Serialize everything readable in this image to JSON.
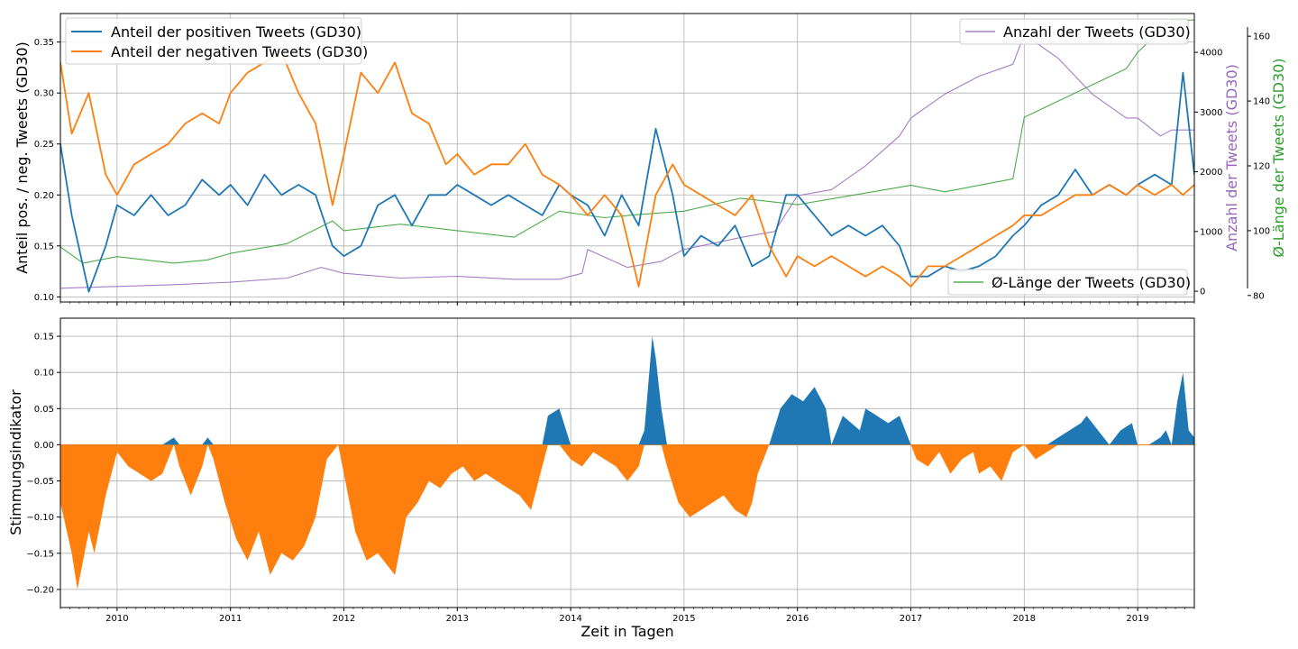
{
  "chart_data": [
    {
      "type": "line",
      "xlabel": "",
      "ylabel": "Anteil pos. / neg. Tweets (GD30)",
      "ylabel_right_1": "Anzahl der Tweets (GD30)",
      "ylabel_right_2": "Ø-Länge der Tweets (GD30)",
      "x_ticks": [
        "2010",
        "2011",
        "2012",
        "2013",
        "2014",
        "2015",
        "2016",
        "2017",
        "2018",
        "2019"
      ],
      "xlim": [
        2009.5,
        2019.5
      ],
      "ylim": [
        0.095,
        0.378
      ],
      "yticks": [
        "0.10",
        "0.15",
        "0.20",
        "0.25",
        "0.30",
        "0.35"
      ],
      "y2lim": [
        -180,
        4650
      ],
      "y2ticks": [
        "0",
        "1000",
        "2000",
        "3000",
        "4000"
      ],
      "y3lim": [
        78,
        167
      ],
      "y3ticks": [
        "80",
        "100",
        "120",
        "140",
        "160"
      ],
      "grid": true,
      "legend_left_placement": "top-left",
      "legend_count_placement": "top-right",
      "legend_length_placement": "bottom-right",
      "colors": {
        "pos": "#1f77b4",
        "neg": "#ff7f0e",
        "count": "#9467bd",
        "length": "#2ca02c"
      },
      "series": [
        {
          "name": "Anteil der positiven Tweets (GD30)",
          "axis": "left",
          "color": "#1f77b4",
          "x": [
            2009.5,
            2009.6,
            2009.75,
            2009.9,
            2010.0,
            2010.15,
            2010.3,
            2010.45,
            2010.6,
            2010.75,
            2010.9,
            2011.0,
            2011.15,
            2011.3,
            2011.45,
            2011.6,
            2011.75,
            2011.9,
            2012.0,
            2012.15,
            2012.3,
            2012.45,
            2012.6,
            2012.75,
            2012.9,
            2013.0,
            2013.15,
            2013.3,
            2013.45,
            2013.6,
            2013.75,
            2013.9,
            2014.0,
            2014.15,
            2014.3,
            2014.45,
            2014.6,
            2014.75,
            2014.9,
            2015.0,
            2015.15,
            2015.3,
            2015.45,
            2015.6,
            2015.75,
            2015.9,
            2016.0,
            2016.15,
            2016.3,
            2016.45,
            2016.6,
            2016.75,
            2016.9,
            2017.0,
            2017.15,
            2017.3,
            2017.45,
            2017.6,
            2017.75,
            2017.9,
            2018.0,
            2018.15,
            2018.3,
            2018.45,
            2018.6,
            2018.75,
            2018.9,
            2019.0,
            2019.15,
            2019.3,
            2019.4,
            2019.5
          ],
          "values": [
            0.25,
            0.18,
            0.105,
            0.15,
            0.19,
            0.18,
            0.2,
            0.18,
            0.19,
            0.215,
            0.2,
            0.21,
            0.19,
            0.22,
            0.2,
            0.21,
            0.2,
            0.15,
            0.14,
            0.15,
            0.19,
            0.2,
            0.17,
            0.2,
            0.2,
            0.21,
            0.2,
            0.19,
            0.2,
            0.19,
            0.18,
            0.21,
            0.2,
            0.19,
            0.16,
            0.2,
            0.17,
            0.265,
            0.2,
            0.14,
            0.16,
            0.15,
            0.17,
            0.13,
            0.14,
            0.2,
            0.2,
            0.18,
            0.16,
            0.17,
            0.16,
            0.17,
            0.15,
            0.12,
            0.12,
            0.13,
            0.125,
            0.13,
            0.14,
            0.16,
            0.17,
            0.19,
            0.2,
            0.225,
            0.2,
            0.21,
            0.2,
            0.21,
            0.22,
            0.21,
            0.32,
            0.22
          ]
        },
        {
          "name": "Anteil der negativen Tweets (GD30)",
          "axis": "left",
          "color": "#ff7f0e",
          "x": [
            2009.5,
            2009.6,
            2009.75,
            2009.9,
            2010.0,
            2010.15,
            2010.3,
            2010.45,
            2010.6,
            2010.75,
            2010.9,
            2011.0,
            2011.15,
            2011.3,
            2011.45,
            2011.6,
            2011.75,
            2011.9,
            2012.0,
            2012.15,
            2012.3,
            2012.45,
            2012.6,
            2012.75,
            2012.9,
            2013.0,
            2013.15,
            2013.3,
            2013.45,
            2013.6,
            2013.75,
            2013.9,
            2014.0,
            2014.15,
            2014.3,
            2014.45,
            2014.6,
            2014.75,
            2014.9,
            2015.0,
            2015.15,
            2015.3,
            2015.45,
            2015.6,
            2015.75,
            2015.9,
            2016.0,
            2016.15,
            2016.3,
            2016.45,
            2016.6,
            2016.75,
            2016.9,
            2017.0,
            2017.15,
            2017.3,
            2017.45,
            2017.6,
            2017.75,
            2017.9,
            2018.0,
            2018.15,
            2018.3,
            2018.45,
            2018.6,
            2018.75,
            2018.9,
            2019.0,
            2019.15,
            2019.3,
            2019.4,
            2019.5
          ],
          "values": [
            0.33,
            0.26,
            0.3,
            0.22,
            0.2,
            0.23,
            0.24,
            0.25,
            0.27,
            0.28,
            0.27,
            0.3,
            0.32,
            0.33,
            0.34,
            0.3,
            0.27,
            0.19,
            0.24,
            0.32,
            0.3,
            0.33,
            0.28,
            0.27,
            0.23,
            0.24,
            0.22,
            0.23,
            0.23,
            0.25,
            0.22,
            0.21,
            0.2,
            0.18,
            0.2,
            0.18,
            0.11,
            0.2,
            0.23,
            0.21,
            0.2,
            0.19,
            0.18,
            0.2,
            0.15,
            0.12,
            0.14,
            0.13,
            0.14,
            0.13,
            0.12,
            0.13,
            0.12,
            0.11,
            0.13,
            0.13,
            0.14,
            0.15,
            0.16,
            0.17,
            0.18,
            0.18,
            0.19,
            0.2,
            0.2,
            0.21,
            0.2,
            0.21,
            0.2,
            0.21,
            0.2,
            0.21
          ]
        },
        {
          "name": "Anzahl der Tweets (GD30)",
          "axis": "right-1",
          "color": "#9467bd",
          "x": [
            2009.5,
            2010.0,
            2010.5,
            2011.0,
            2011.5,
            2011.8,
            2012.0,
            2012.5,
            2013.0,
            2013.5,
            2013.9,
            2014.1,
            2014.15,
            2014.5,
            2014.8,
            2015.0,
            2015.5,
            2015.8,
            2016.0,
            2016.3,
            2016.6,
            2016.9,
            2017.0,
            2017.3,
            2017.6,
            2017.9,
            2018.0,
            2018.3,
            2018.6,
            2018.9,
            2019.0,
            2019.2,
            2019.3,
            2019.5
          ],
          "values": [
            50,
            80,
            110,
            150,
            220,
            400,
            300,
            220,
            250,
            200,
            200,
            300,
            700,
            400,
            500,
            700,
            900,
            1000,
            1600,
            1700,
            2100,
            2600,
            2900,
            3300,
            3600,
            3800,
            4300,
            3900,
            3300,
            2900,
            2900,
            2600,
            2700,
            2700
          ]
        },
        {
          "name": "Ø-Länge der Tweets (GD30)",
          "axis": "right-2",
          "color": "#2ca02c",
          "x": [
            2009.5,
            2009.7,
            2010.0,
            2010.5,
            2010.8,
            2011.0,
            2011.5,
            2011.9,
            2012.0,
            2012.5,
            2013.0,
            2013.5,
            2013.9,
            2014.3,
            2014.6,
            2015.0,
            2015.5,
            2016.0,
            2016.5,
            2017.0,
            2017.3,
            2017.6,
            2017.9,
            2018.0,
            2018.3,
            2018.6,
            2018.9,
            2019.0,
            2019.3,
            2019.5
          ],
          "values": [
            95,
            90,
            92,
            90,
            91,
            93,
            96,
            103,
            100,
            102,
            100,
            98,
            106,
            104,
            105,
            106,
            110,
            108,
            111,
            114,
            112,
            114,
            116,
            135,
            140,
            145,
            150,
            155,
            165,
            165
          ]
        }
      ]
    },
    {
      "type": "area",
      "xlabel": "Zeit in Tagen",
      "ylabel": "Stimmungsindikator",
      "x_ticks": [
        "2010",
        "2011",
        "2012",
        "2013",
        "2014",
        "2015",
        "2016",
        "2017",
        "2018",
        "2019"
      ],
      "xlim": [
        2009.5,
        2019.5
      ],
      "ylim": [
        -0.225,
        0.175
      ],
      "yticks": [
        "−0.20",
        "−0.15",
        "−0.10",
        "−0.05",
        "0.00",
        "0.05",
        "0.10",
        "0.15"
      ],
      "grid": true,
      "colors": {
        "positive": "#1f77b4",
        "negative": "#ff7f0e"
      },
      "x": [
        2009.5,
        2009.6,
        2009.65,
        2009.75,
        2009.8,
        2009.9,
        2010.0,
        2010.1,
        2010.2,
        2010.3,
        2010.4,
        2010.5,
        2010.55,
        2010.65,
        2010.75,
        2010.8,
        2010.85,
        2010.95,
        2011.05,
        2011.15,
        2011.25,
        2011.35,
        2011.45,
        2011.55,
        2011.65,
        2011.75,
        2011.85,
        2011.95,
        2012.0,
        2012.1,
        2012.2,
        2012.3,
        2012.4,
        2012.45,
        2012.55,
        2012.65,
        2012.75,
        2012.85,
        2012.95,
        2013.05,
        2013.15,
        2013.25,
        2013.35,
        2013.45,
        2013.55,
        2013.65,
        2013.75,
        2013.8,
        2013.9,
        2014.0,
        2014.1,
        2014.2,
        2014.3,
        2014.4,
        2014.5,
        2014.6,
        2014.65,
        2014.72,
        2014.75,
        2014.8,
        2014.85,
        2014.95,
        2015.05,
        2015.15,
        2015.25,
        2015.35,
        2015.45,
        2015.55,
        2015.6,
        2015.65,
        2015.75,
        2015.85,
        2015.95,
        2016.05,
        2016.15,
        2016.25,
        2016.3,
        2016.4,
        2016.55,
        2016.6,
        2016.7,
        2016.8,
        2016.9,
        2017.0,
        2017.05,
        2017.15,
        2017.25,
        2017.35,
        2017.45,
        2017.55,
        2017.6,
        2017.7,
        2017.8,
        2017.9,
        2018.0,
        2018.1,
        2018.2,
        2018.3,
        2018.4,
        2018.5,
        2018.55,
        2018.65,
        2018.75,
        2018.85,
        2018.95,
        2019.0,
        2019.1,
        2019.2,
        2019.25,
        2019.3,
        2019.35,
        2019.4,
        2019.45,
        2019.5
      ],
      "values": [
        -0.08,
        -0.15,
        -0.2,
        -0.12,
        -0.15,
        -0.07,
        -0.01,
        -0.03,
        -0.04,
        -0.05,
        -0.04,
        0.01,
        -0.03,
        -0.07,
        -0.03,
        0.01,
        -0.02,
        -0.08,
        -0.13,
        -0.16,
        -0.12,
        -0.18,
        -0.15,
        -0.16,
        -0.14,
        -0.1,
        -0.02,
        0.0,
        -0.04,
        -0.12,
        -0.16,
        -0.15,
        -0.17,
        -0.18,
        -0.1,
        -0.08,
        -0.05,
        -0.06,
        -0.04,
        -0.03,
        -0.05,
        -0.04,
        -0.05,
        -0.06,
        -0.07,
        -0.09,
        -0.03,
        0.04,
        0.05,
        -0.02,
        -0.03,
        -0.01,
        -0.02,
        -0.03,
        -0.05,
        -0.03,
        0.02,
        0.15,
        0.12,
        0.05,
        -0.03,
        -0.08,
        -0.1,
        -0.09,
        -0.08,
        -0.07,
        -0.09,
        -0.1,
        -0.08,
        -0.04,
        0.0,
        0.05,
        0.07,
        0.06,
        0.08,
        0.05,
        0.0,
        0.04,
        0.02,
        0.05,
        0.04,
        0.03,
        0.04,
        0.0,
        -0.02,
        -0.03,
        -0.01,
        -0.04,
        -0.02,
        -0.01,
        -0.04,
        -0.03,
        -0.05,
        -0.01,
        0.0,
        -0.02,
        -0.01,
        0.01,
        0.02,
        0.03,
        0.04,
        0.02,
        0.0,
        0.02,
        0.03,
        0.0,
        0.0,
        0.01,
        0.02,
        0.0,
        0.06,
        0.1,
        0.02,
        0.01
      ]
    }
  ]
}
